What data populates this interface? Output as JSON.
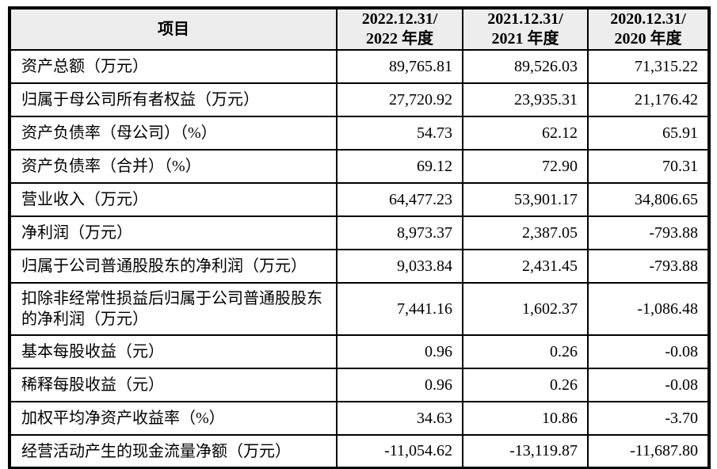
{
  "table": {
    "header": {
      "item_label": "项目",
      "columns": [
        {
          "line1": "2022.12.31/",
          "line2": "2022 年度"
        },
        {
          "line1": "2021.12.31/",
          "line2": "2021 年度"
        },
        {
          "line1": "2020.12.31/",
          "line2": "2020 年度"
        }
      ]
    },
    "rows": [
      {
        "label": "资产总额（万元）",
        "values": [
          "89,765.81",
          "89,526.03",
          "71,315.22"
        ]
      },
      {
        "label": "归属于母公司所有者权益（万元）",
        "values": [
          "27,720.92",
          "23,935.31",
          "21,176.42"
        ]
      },
      {
        "label": "资产负债率（母公司）（%）",
        "values": [
          "54.73",
          "62.12",
          "65.91"
        ]
      },
      {
        "label": "资产负债率（合并）（%）",
        "values": [
          "69.12",
          "72.90",
          "70.31"
        ]
      },
      {
        "label": "营业收入（万元）",
        "values": [
          "64,477.23",
          "53,901.17",
          "34,806.65"
        ]
      },
      {
        "label": "净利润（万元）",
        "values": [
          "8,973.37",
          "2,387.05",
          "-793.88"
        ]
      },
      {
        "label": "归属于公司普通股股东的净利润（万元）",
        "values": [
          "9,033.84",
          "2,431.45",
          "-793.88"
        ]
      },
      {
        "label": "扣除非经常性损益后归属于公司普通股股东的净利润（万元）",
        "values": [
          "7,441.16",
          "1,602.37",
          "-1,086.48"
        ]
      },
      {
        "label": "基本每股收益（元）",
        "values": [
          "0.96",
          "0.26",
          "-0.08"
        ]
      },
      {
        "label": "稀释每股收益（元）",
        "values": [
          "0.96",
          "0.26",
          "-0.08"
        ]
      },
      {
        "label": "加权平均净资产收益率（%）",
        "values": [
          "34.63",
          "10.86",
          "-3.70"
        ]
      },
      {
        "label": "经营活动产生的现金流量净额（万元）",
        "values": [
          "-11,054.62",
          "-13,119.87",
          "-11,687.80"
        ]
      }
    ],
    "colors": {
      "header_bg": "#ededed",
      "body_bg": "#ffffff",
      "border": "#000000",
      "text": "#000000"
    }
  }
}
